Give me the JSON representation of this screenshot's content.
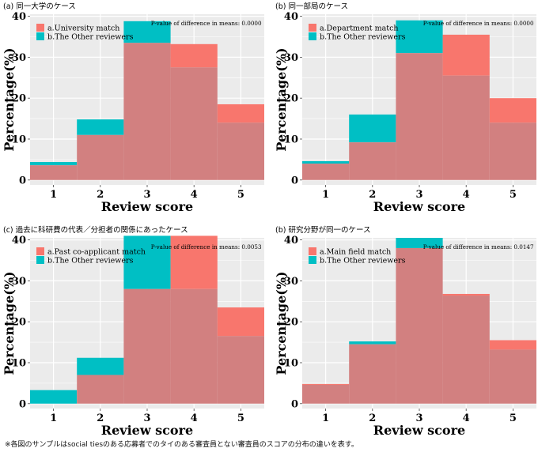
{
  "colors": {
    "panel_bg": "#ebebeb",
    "grid": "#ffffff",
    "series_a": "#f8766d",
    "series_b": "#00bfc4",
    "overlap": "#d28080"
  },
  "footnote": "※各図のサンプルはsocial tiesのある応募者でのタイのある審査員とない審査員のスコアの分布の違いを表す。",
  "chart_data": [
    {
      "type": "bar",
      "title": "(a) 同一大学のケース",
      "xlabel": "Review score",
      "ylabel": "Percentage(%)",
      "categories": [
        "1",
        "2",
        "3",
        "4",
        "5"
      ],
      "ylim": [
        0,
        40
      ],
      "yticks": [
        "0",
        "10",
        "20",
        "30",
        "40"
      ],
      "annotation": "P-value of difference in means: 0.0000",
      "legend_position": "top-left",
      "series": [
        {
          "name": "a.University match",
          "values": [
            3.6,
            11.0,
            33.5,
            33.2,
            18.5
          ]
        },
        {
          "name": "b.The Other reviewers",
          "values": [
            4.4,
            14.8,
            38.8,
            27.5,
            14.0
          ]
        }
      ]
    },
    {
      "type": "bar",
      "title": "(b) 同一部局のケース",
      "xlabel": "Review score",
      "ylabel": "Percentage(%)",
      "categories": [
        "1",
        "2",
        "3",
        "4",
        "5"
      ],
      "ylim": [
        0,
        40
      ],
      "yticks": [
        "0",
        "10",
        "20",
        "30",
        "40"
      ],
      "annotation": "P-value of difference in means: 0.0000",
      "legend_position": "top-left",
      "series": [
        {
          "name": "a.Department match",
          "values": [
            4.0,
            9.2,
            31.0,
            35.5,
            20.0
          ]
        },
        {
          "name": "b.The Other reviewers",
          "values": [
            4.6,
            16.0,
            39.0,
            25.5,
            14.0
          ]
        }
      ]
    },
    {
      "type": "bar",
      "title": "(c) 過去に科研費の代表／分担者の関係にあったケース",
      "xlabel": "Review score",
      "ylabel": "Percentage(%)",
      "categories": [
        "1",
        "2",
        "3",
        "4",
        "5"
      ],
      "ylim": [
        0,
        40
      ],
      "yticks": [
        "0",
        "10",
        "20",
        "30",
        "40"
      ],
      "annotation": "P-value of difference in means: 0.0053",
      "legend_position": "top-left",
      "series": [
        {
          "name": "a.Past co-applicant match",
          "values": [
            0.0,
            7.0,
            28.0,
            41.0,
            23.5
          ]
        },
        {
          "name": "b.The Other reviewers",
          "values": [
            3.3,
            11.2,
            41.0,
            28.0,
            16.5
          ]
        }
      ]
    },
    {
      "type": "bar",
      "title": "(b) 研究分野が同一のケース",
      "xlabel": "Review score",
      "ylabel": "Percentage(%)",
      "categories": [
        "1",
        "2",
        "3",
        "4",
        "5"
      ],
      "ylim": [
        0,
        40
      ],
      "yticks": [
        "0",
        "10",
        "20",
        "30",
        "40"
      ],
      "annotation": "P-value of difference in means: 0.0147",
      "legend_position": "top-left",
      "series": [
        {
          "name": "a.Main field match",
          "values": [
            4.8,
            14.5,
            38.0,
            26.8,
            15.5
          ]
        },
        {
          "name": "b.The Other reviewers",
          "values": [
            4.6,
            15.2,
            40.5,
            26.4,
            13.2
          ]
        }
      ]
    }
  ]
}
